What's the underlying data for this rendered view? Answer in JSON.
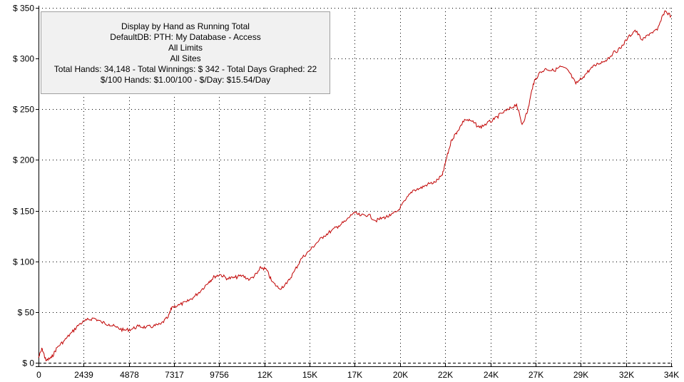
{
  "info_box": {
    "lines": [
      "Display by Hand as Running Total",
      "DefaultDB: PTH: My Database - Access",
      "All Limits",
      "All Sites",
      "Total Hands: 34,148 - Total Winnings: $ 342 - Total Days Graphed: 22",
      "$/100 Hands: $1.00/100 - $/Day: $15.54/Day"
    ]
  },
  "chart_data": {
    "type": "line",
    "title": "",
    "xlabel": "",
    "ylabel": "",
    "xlim": [
      0,
      34148
    ],
    "ylim": [
      0,
      350
    ],
    "grid": true,
    "grid_style": "dotted",
    "line_color": "#c00000",
    "zero_line_style": "dashed",
    "y_ticks": [
      {
        "value": 0,
        "label": "$ 0"
      },
      {
        "value": 50,
        "label": "$ 50"
      },
      {
        "value": 100,
        "label": "$ 100"
      },
      {
        "value": 150,
        "label": "$ 150"
      },
      {
        "value": 200,
        "label": "$ 200"
      },
      {
        "value": 250,
        "label": "$ 250"
      },
      {
        "value": 300,
        "label": "$ 300"
      },
      {
        "value": 350,
        "label": "$ 350"
      }
    ],
    "x_ticks": [
      {
        "value": 0,
        "label": "0"
      },
      {
        "value": 2439,
        "label": "2439"
      },
      {
        "value": 4878,
        "label": "4878"
      },
      {
        "value": 7317,
        "label": "7317"
      },
      {
        "value": 9756,
        "label": "9756"
      },
      {
        "value": 12195,
        "label": "12K"
      },
      {
        "value": 14634,
        "label": "15K"
      },
      {
        "value": 17073,
        "label": "17K"
      },
      {
        "value": 19512,
        "label": "20K"
      },
      {
        "value": 21951,
        "label": "22K"
      },
      {
        "value": 24390,
        "label": "24K"
      },
      {
        "value": 26829,
        "label": "27K"
      },
      {
        "value": 29268,
        "label": "29K"
      },
      {
        "value": 31707,
        "label": "32K"
      },
      {
        "value": 34148,
        "label": "34K"
      }
    ],
    "series": [
      {
        "x": [
          0,
          200,
          400,
          700,
          1000,
          1400,
          1800,
          2200,
          2600,
          3000,
          3400,
          3800,
          4200,
          4600,
          5000,
          5400,
          5800,
          6200,
          6600,
          7000,
          7200,
          7600,
          8000,
          8400,
          8800,
          9200,
          9500,
          9800,
          10200,
          10600,
          11000,
          11400,
          11800,
          12000,
          12300,
          12600,
          13000,
          13400,
          13800,
          14200,
          14600,
          15000,
          15400,
          15800,
          16200,
          16600,
          17000,
          17400,
          17800,
          18200,
          18600,
          19000,
          19400,
          19800,
          20200,
          20600,
          21000,
          21400,
          21800,
          22000,
          22300,
          22600,
          23000,
          23400,
          23800,
          24200,
          24600,
          25000,
          25400,
          25800,
          26100,
          26400,
          26700,
          27000,
          27400,
          27800,
          28200,
          28600,
          29000,
          29400,
          29800,
          30200,
          30600,
          31000,
          31400,
          31800,
          32200,
          32600,
          33000,
          33400,
          33800,
          34148
        ],
        "values": [
          5,
          14,
          2,
          5,
          15,
          22,
          30,
          38,
          42,
          44,
          40,
          38,
          35,
          32,
          33,
          36,
          35,
          36,
          38,
          45,
          55,
          57,
          60,
          65,
          72,
          80,
          85,
          87,
          83,
          84,
          86,
          82,
          88,
          94,
          92,
          80,
          73,
          78,
          90,
          103,
          110,
          118,
          125,
          130,
          135,
          140,
          148,
          145,
          146,
          140,
          143,
          145,
          150,
          160,
          170,
          172,
          176,
          178,
          185,
          200,
          220,
          228,
          240,
          238,
          232,
          236,
          240,
          246,
          250,
          255,
          235,
          248,
          275,
          285,
          290,
          288,
          292,
          288,
          275,
          282,
          290,
          295,
          298,
          305,
          310,
          320,
          328,
          318,
          325,
          328,
          347,
          342
        ]
      }
    ]
  }
}
